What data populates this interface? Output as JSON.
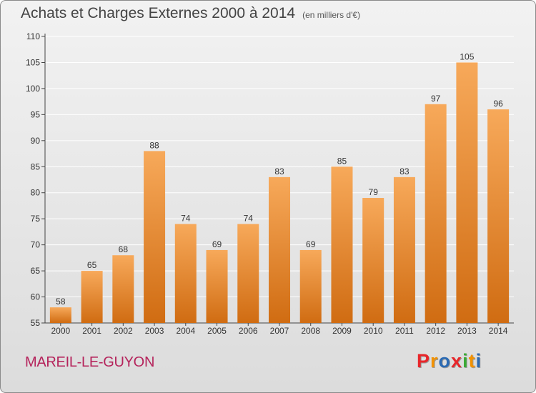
{
  "header": {
    "title": "Achats et Charges Externes 2000 à 2014",
    "subtitle": "(en milliers d'€)"
  },
  "footer": {
    "commune": "MAREIL-LE-GUYON",
    "logo_text": "Proxiti",
    "logo_colors": [
      "#e8262a",
      "#f39200",
      "#2b6ab3",
      "#e8262a",
      "#3aaa35",
      "#f39200",
      "#2b6ab3"
    ]
  },
  "colors": {
    "bar_top": "#f7a95a",
    "bar_bottom": "#d06c12",
    "grid": "#ffffff",
    "axis": "#444444",
    "commune_text": "#b5245c"
  },
  "chart_data": {
    "type": "bar",
    "title": "Achats et Charges Externes 2000 à 2014",
    "subtitle": "(en milliers d'€)",
    "categories": [
      "2000",
      "2001",
      "2002",
      "2003",
      "2004",
      "2005",
      "2006",
      "2007",
      "2008",
      "2009",
      "2010",
      "2011",
      "2012",
      "2013",
      "2014"
    ],
    "values": [
      58,
      65,
      68,
      88,
      74,
      69,
      74,
      83,
      69,
      85,
      79,
      83,
      97,
      105,
      96
    ],
    "ylim": [
      55,
      110
    ],
    "yticks": [
      55,
      60,
      65,
      70,
      75,
      80,
      85,
      90,
      95,
      100,
      105,
      110
    ],
    "grid": true,
    "data_labels": true
  }
}
